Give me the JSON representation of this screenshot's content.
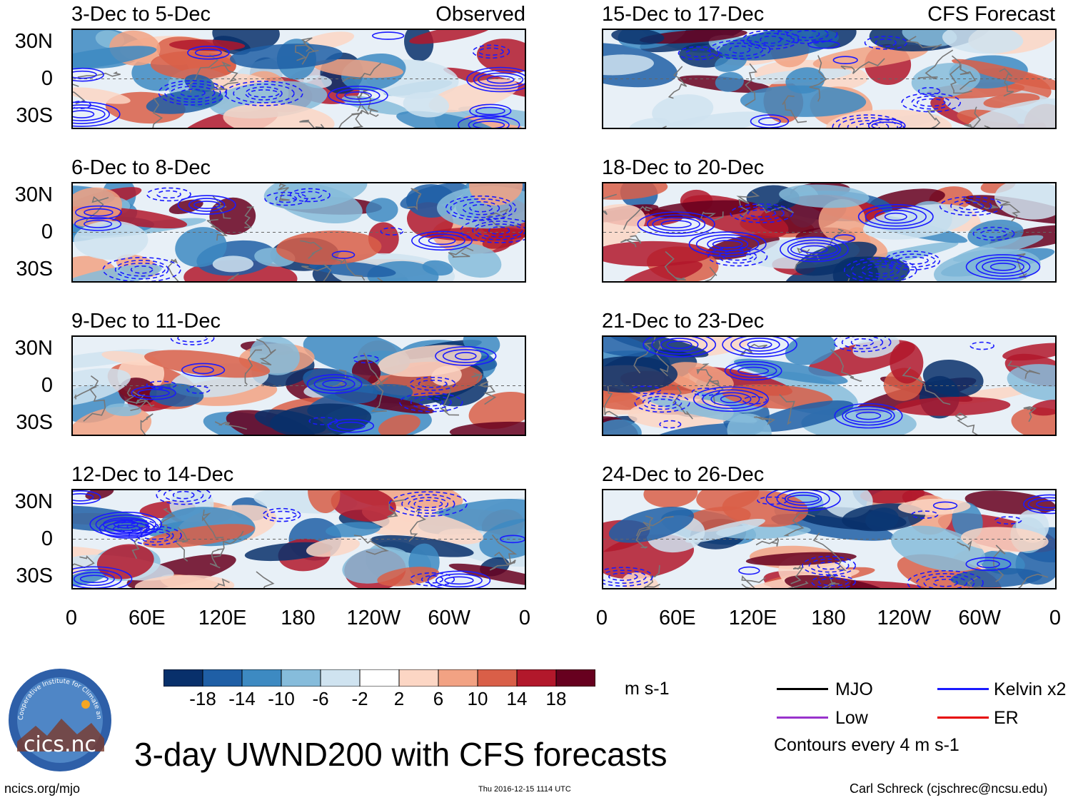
{
  "observed_label": "Observed",
  "forecast_label": "CFS Forecast",
  "panels_left": [
    {
      "title": "3-Dec to 5-Dec"
    },
    {
      "title": "6-Dec to 8-Dec"
    },
    {
      "title": "9-Dec to 11-Dec"
    },
    {
      "title": "12-Dec to 14-Dec"
    }
  ],
  "panels_right": [
    {
      "title": "15-Dec to 17-Dec"
    },
    {
      "title": "18-Dec to 20-Dec"
    },
    {
      "title": "21-Dec to 23-Dec"
    },
    {
      "title": "24-Dec to 26-Dec"
    }
  ],
  "chart_data": {
    "type": "heatmap",
    "title": "3-day UWND200 with CFS forecasts",
    "variable": "200 hPa zonal wind anomaly",
    "lat_ticks": [
      "30N",
      "0",
      "30S"
    ],
    "lon_ticks": [
      "0",
      "60E",
      "120E",
      "180",
      "120W",
      "60W",
      "0"
    ],
    "colorbar": {
      "levels": [
        "-18",
        "-14",
        "-10",
        "-6",
        "-2",
        "2",
        "6",
        "10",
        "14",
        "18"
      ],
      "colors": [
        "#08306b",
        "#1f5fa6",
        "#3d8ac2",
        "#86bcdb",
        "#cfe3f0",
        "#ffffff",
        "#fcd6c4",
        "#f2a283",
        "#d95f48",
        "#b2182b",
        "#67001f"
      ],
      "units": "m s-1"
    },
    "legend": [
      {
        "label": "MJO",
        "color": "#000000"
      },
      {
        "label": "Kelvin x2",
        "color": "#1a1aff"
      },
      {
        "label": "Low",
        "color": "#9933cc"
      },
      {
        "label": "ER",
        "color": "#e60000"
      }
    ],
    "contour_note": "Contours every 4 m s-1"
  },
  "branding": {
    "logo_text": "cics.nc",
    "logo_ring_text": "Cooperative Institute for Climate and Satellites"
  },
  "footer": {
    "left": "ncics.org/mjo",
    "center": "Thu 2016-12-15 1114 UTC",
    "right": "Carl Schreck (cjschrec@ncsu.edu)"
  }
}
